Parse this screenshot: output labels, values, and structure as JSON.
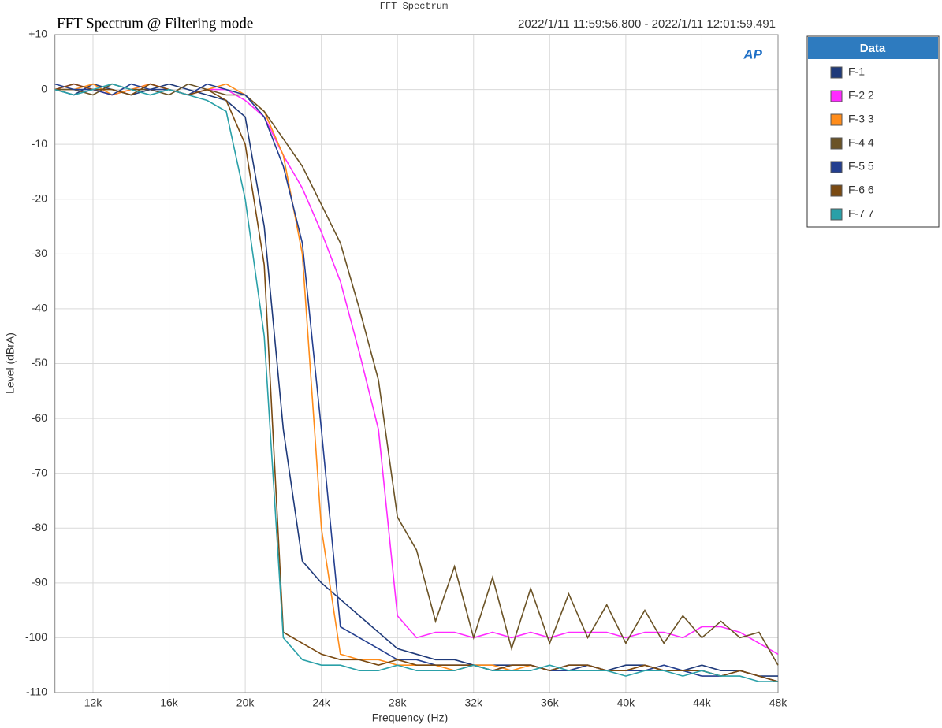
{
  "chart_data": {
    "type": "line",
    "header": "FFT Spectrum",
    "title": "FFT Spectrum @ Filtering mode",
    "subtitle": "2022/1/11 11:59:56.800 - 2022/1/11 12:01:59.491",
    "logo": "AP",
    "xlabel": "Frequency (Hz)",
    "ylabel": "Level (dBrA)",
    "legend_title": "Data",
    "xlim": [
      10000,
      48000
    ],
    "ylim": [
      -110,
      10
    ],
    "xticks": [
      {
        "value": 12000,
        "label": "12k"
      },
      {
        "value": 16000,
        "label": "16k"
      },
      {
        "value": 20000,
        "label": "20k"
      },
      {
        "value": 24000,
        "label": "24k"
      },
      {
        "value": 28000,
        "label": "28k"
      },
      {
        "value": 32000,
        "label": "32k"
      },
      {
        "value": 36000,
        "label": "36k"
      },
      {
        "value": 40000,
        "label": "40k"
      },
      {
        "value": 44000,
        "label": "44k"
      },
      {
        "value": 48000,
        "label": "48k"
      }
    ],
    "yticks": [
      -110,
      -100,
      -90,
      -80,
      -70,
      -60,
      -50,
      -40,
      -30,
      -20,
      -10,
      0,
      {
        "value": 10,
        "label": "+10"
      }
    ],
    "grid": true,
    "legend": "outside-right",
    "x": [
      10000,
      11000,
      12000,
      13000,
      14000,
      15000,
      16000,
      17000,
      18000,
      19000,
      20000,
      21000,
      22000,
      23000,
      24000,
      25000,
      26000,
      27000,
      28000,
      29000,
      30000,
      31000,
      32000,
      33000,
      34000,
      35000,
      36000,
      37000,
      38000,
      39000,
      40000,
      41000,
      42000,
      43000,
      44000,
      45000,
      46000,
      47000,
      48000
    ],
    "series": [
      {
        "name": "F-1",
        "color": "#1f3a7a",
        "values": [
          0,
          -1,
          1,
          0,
          -1,
          0,
          1,
          0,
          -1,
          -2,
          -5,
          -25,
          -62,
          -86,
          -90,
          -93,
          -96,
          -99,
          -102,
          -103,
          -104,
          -104,
          -105,
          -105,
          -105,
          -105,
          -106,
          -105,
          -105,
          -106,
          -105,
          -105,
          -106,
          -106,
          -105,
          -106,
          -106,
          -107,
          -107
        ]
      },
      {
        "name": "F-2 2",
        "color": "#ff2bff",
        "values": [
          0,
          1,
          0,
          -1,
          0,
          1,
          0,
          -1,
          0,
          0,
          -2,
          -5,
          -12,
          -18,
          -26,
          -35,
          -48,
          -62,
          -96,
          -100,
          -99,
          -99,
          -100,
          -99,
          -100,
          -99,
          -100,
          -99,
          -99,
          -99,
          -100,
          -99,
          -99,
          -100,
          -98,
          -98,
          -99,
          -101,
          -103
        ]
      },
      {
        "name": "F-3 3",
        "color": "#ff8c1a",
        "values": [
          0,
          0,
          1,
          -1,
          0,
          1,
          0,
          -1,
          0,
          1,
          -1,
          -4,
          -12,
          -30,
          -80,
          -103,
          -104,
          -104,
          -105,
          -105,
          -105,
          -106,
          -105,
          -105,
          -106,
          -105,
          -106,
          -106,
          -105,
          -106,
          -106,
          -105,
          -106,
          -106,
          -106,
          -107,
          -106,
          -107,
          -108
        ]
      },
      {
        "name": "F-4 4",
        "color": "#6b5326",
        "values": [
          0,
          0,
          -1,
          1,
          0,
          0,
          -1,
          1,
          0,
          -1,
          -1,
          -4,
          -9,
          -14,
          -21,
          -28,
          -40,
          -53,
          -78,
          -84,
          -97,
          -87,
          -100,
          -89,
          -102,
          -91,
          -101,
          -92,
          -100,
          -94,
          -101,
          -95,
          -101,
          -96,
          -100,
          -97,
          -100,
          -99,
          -105
        ]
      },
      {
        "name": "F-5 5",
        "color": "#243f8f",
        "values": [
          1,
          0,
          0,
          -1,
          1,
          0,
          0,
          -1,
          1,
          0,
          -1,
          -5,
          -14,
          -28,
          -62,
          -98,
          -100,
          -102,
          -104,
          -104,
          -105,
          -105,
          -105,
          -106,
          -105,
          -105,
          -106,
          -106,
          -105,
          -106,
          -106,
          -106,
          -105,
          -106,
          -107,
          -107,
          -106,
          -107,
          -108
        ]
      },
      {
        "name": "F-6 6",
        "color": "#7a4a12",
        "values": [
          0,
          1,
          0,
          0,
          -1,
          1,
          0,
          -1,
          0,
          -2,
          -10,
          -32,
          -99,
          -101,
          -103,
          -104,
          -104,
          -105,
          -104,
          -105,
          -105,
          -105,
          -105,
          -106,
          -105,
          -105,
          -106,
          -105,
          -105,
          -106,
          -106,
          -105,
          -106,
          -106,
          -106,
          -107,
          -106,
          -107,
          -108
        ]
      },
      {
        "name": "F-7 7",
        "color": "#2aa0a8",
        "values": [
          0,
          -1,
          0,
          1,
          0,
          -1,
          0,
          -1,
          -2,
          -4,
          -20,
          -45,
          -100,
          -104,
          -105,
          -105,
          -106,
          -106,
          -105,
          -106,
          -106,
          -106,
          -105,
          -106,
          -106,
          -106,
          -105,
          -106,
          -106,
          -106,
          -107,
          -106,
          -106,
          -107,
          -106,
          -107,
          -107,
          -108,
          -108
        ]
      }
    ]
  }
}
